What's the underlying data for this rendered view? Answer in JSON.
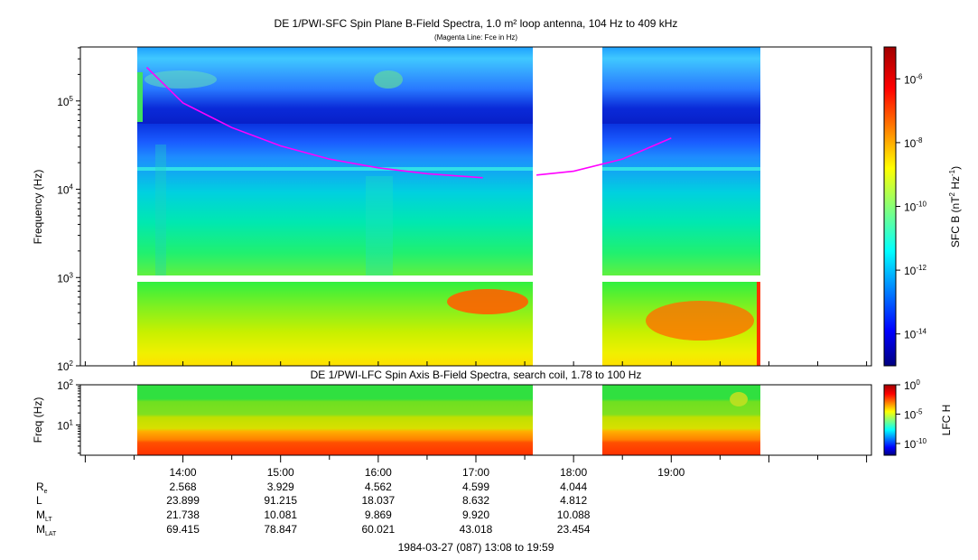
{
  "chart_data": [
    {
      "type": "heatmap",
      "title": "DE 1/PWI-SFC  Spin Plane B-Field Spectra, 1.0 m² loop antenna, 104 Hz to 409 kHz",
      "subtitle": "(Magenta Line: Fce in Hz)",
      "ylabel": "Frequency (Hz)",
      "yscale": "log",
      "ylim": [
        100,
        409000
      ],
      "yticks": [
        {
          "v": 100,
          "label": "10",
          "sup": "2"
        },
        {
          "v": 1000,
          "label": "10",
          "sup": "3"
        },
        {
          "v": 10000,
          "label": "10",
          "sup": "4"
        },
        {
          "v": 100000,
          "label": "10",
          "sup": "5"
        }
      ],
      "colorbar": {
        "label": "SFC B (nT",
        "label_sup1": "2",
        "label_mid": " Hz",
        "label_sup2": "-1",
        "label_end": ")",
        "scale": "log",
        "range": [
          1e-15,
          1e-05
        ],
        "ticks": [
          {
            "v": 1e-06,
            "label": "10",
            "sup": "-6"
          },
          {
            "v": 1e-08,
            "label": "10",
            "sup": "-8"
          },
          {
            "v": 1e-10,
            "label": "10",
            "sup": "-10"
          },
          {
            "v": 1e-12,
            "label": "10",
            "sup": "-12"
          },
          {
            "v": 1e-14,
            "label": "10",
            "sup": "-14"
          }
        ]
      },
      "coverage_hours": [
        [
          13.63,
          17.07
        ],
        [
          17.62,
          19.01
        ]
      ],
      "fce_series": {
        "name": "Fce",
        "x": [
          13.63,
          14.0,
          14.5,
          15.0,
          15.5,
          16.0,
          16.5,
          17.07,
          17.62,
          18.0,
          18.5,
          19.0
        ],
        "y": [
          240000,
          95000,
          50000,
          31000,
          22000,
          17500,
          15000,
          13500,
          14500,
          16000,
          22000,
          38000
        ]
      }
    },
    {
      "type": "heatmap",
      "title": "DE 1/PWI-LFC  Spin Axis B-Field Spectra, search coil, 1.78 to 100 Hz",
      "ylabel": "Freq (Hz)",
      "yscale": "log",
      "ylim": [
        1.78,
        100
      ],
      "yticks": [
        {
          "v": 10,
          "label": "10",
          "sup": "1"
        },
        {
          "v": 100,
          "label": "10",
          "sup": "2"
        }
      ],
      "colorbar": {
        "label": "LFC H",
        "scale": "log",
        "range": [
          1e-12,
          1
        ],
        "ticks": [
          {
            "v": 1,
            "label": "10",
            "sup": "0"
          },
          {
            "v": 1e-05,
            "label": "10",
            "sup": "-5"
          },
          {
            "v": 1e-10,
            "label": "10",
            "sup": "-10"
          }
        ]
      },
      "coverage_hours": [
        [
          13.63,
          17.07
        ],
        [
          17.62,
          19.01
        ]
      ]
    }
  ],
  "xaxis": {
    "xlim_hours": [
      12.95,
      21.05
    ],
    "tick_labels": [
      {
        "h": 14,
        "label": "14:00"
      },
      {
        "h": 15,
        "label": "15:00"
      },
      {
        "h": 16,
        "label": "16:00"
      },
      {
        "h": 17,
        "label": "17:00"
      },
      {
        "h": 18,
        "label": "18:00"
      },
      {
        "h": 19,
        "label": "19:00"
      }
    ]
  },
  "ephemeris": {
    "rows": [
      {
        "label": "R",
        "sub": "e",
        "values": [
          "2.568",
          "3.929",
          "4.562",
          "4.599",
          "4.044"
        ]
      },
      {
        "label": "L",
        "sub": "",
        "values": [
          "23.899",
          "91.215",
          "18.037",
          "8.632",
          "4.812"
        ]
      },
      {
        "label": "M",
        "sub": "LT",
        "values": [
          "21.738",
          "10.081",
          "9.869",
          "9.920",
          "10.088"
        ]
      },
      {
        "label": "M",
        "sub": "LAT",
        "values": [
          "69.415",
          "78.847",
          "60.021",
          "43.018",
          "23.454"
        ]
      }
    ]
  },
  "footer": "1984-03-27 (087) 13:08 to 19:59"
}
